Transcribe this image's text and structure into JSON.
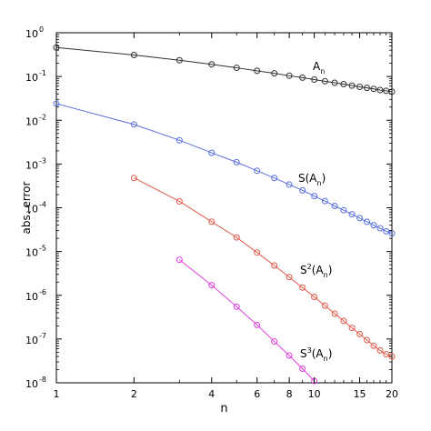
{
  "chart_data": {
    "type": "line",
    "xlabel": "n",
    "ylabel": "abs. error",
    "xscale": "log",
    "yscale": "log",
    "xlim": [
      1,
      20
    ],
    "ylim": [
      1e-08,
      1
    ],
    "grid": false,
    "x_ticks": [
      {
        "value": 1,
        "label": "1"
      },
      {
        "value": 2,
        "label": "2"
      },
      {
        "value": 4,
        "label": "4"
      },
      {
        "value": 6,
        "label": "6"
      },
      {
        "value": 8,
        "label": "8"
      },
      {
        "value": 10,
        "label": "10"
      },
      {
        "value": 15,
        "label": "15"
      },
      {
        "value": 20,
        "label": "20"
      }
    ],
    "y_ticks": [
      {
        "value": 1,
        "base": "10",
        "exp": "0"
      },
      {
        "value": 0.1,
        "base": "10",
        "exp": "-1"
      },
      {
        "value": 0.01,
        "base": "10",
        "exp": "-2"
      },
      {
        "value": 0.001,
        "base": "10",
        "exp": "-3"
      },
      {
        "value": 0.0001,
        "base": "10",
        "exp": "-4"
      },
      {
        "value": 1e-05,
        "base": "10",
        "exp": "-5"
      },
      {
        "value": 1e-06,
        "base": "10",
        "exp": "-6"
      },
      {
        "value": 1e-07,
        "base": "10",
        "exp": "-7"
      },
      {
        "value": 1e-08,
        "base": "10",
        "exp": "-8"
      }
    ],
    "series": [
      {
        "name_base": "A",
        "name_sub": "n",
        "name_sup": "",
        "color": "#303030",
        "x": [
          1,
          2,
          3,
          4,
          5,
          6,
          7,
          8,
          9,
          10,
          11,
          12,
          13,
          14,
          15,
          16,
          17,
          18,
          19,
          20
        ],
        "y": [
          0.46,
          0.31,
          0.235,
          0.19,
          0.158,
          0.135,
          0.118,
          0.104,
          0.094,
          0.085,
          0.078,
          0.072,
          0.067,
          0.062,
          0.058,
          0.055,
          0.052,
          0.049,
          0.047,
          0.045
        ]
      },
      {
        "name_base": "S(A",
        "name_sub": "n",
        "name_sup": "",
        "name_close": ")",
        "color": "#5a6fe0",
        "x": [
          1,
          2,
          3,
          4,
          5,
          6,
          7,
          8,
          9,
          10,
          11,
          12,
          13,
          14,
          15,
          16,
          17,
          18,
          19,
          20
        ],
        "y": [
          0.024,
          0.008,
          0.0035,
          0.0018,
          0.0011,
          0.0007,
          0.00048,
          0.00034,
          0.00025,
          0.000185,
          0.000142,
          0.00011,
          8.8e-05,
          7.1e-05,
          5.8e-05,
          4.8e-05,
          4e-05,
          3.4e-05,
          2.9e-05,
          2.6e-05
        ]
      },
      {
        "name_base": "S",
        "name_sup": "2",
        "name_mid": "(A",
        "name_sub": "n",
        "name_close": ")",
        "color": "#e05a4a",
        "x": [
          2,
          3,
          4,
          5,
          6,
          7,
          8,
          9,
          10,
          11,
          12,
          13,
          14,
          15,
          16,
          17,
          18,
          19,
          20
        ],
        "y": [
          0.00048,
          0.00014,
          4.8e-05,
          2.1e-05,
          9.5e-06,
          4.8e-06,
          2.6e-06,
          1.5e-06,
          9.2e-07,
          5.8e-07,
          3.8e-07,
          2.6e-07,
          1.8e-07,
          1.3e-07,
          9.5e-08,
          7e-08,
          5.5e-08,
          4.5e-08,
          4e-08
        ]
      },
      {
        "name_base": "S",
        "name_sup": "3",
        "name_mid": "(A",
        "name_sub": "n",
        "name_close": ")",
        "color": "#e040e0",
        "x": [
          3,
          4,
          5,
          6,
          7,
          8,
          9,
          10
        ],
        "y": [
          6.5e-06,
          1.7e-06,
          5.5e-07,
          2.1e-07,
          8.8e-08,
          4.2e-08,
          2.1e-08,
          1.1e-08
        ]
      }
    ]
  }
}
